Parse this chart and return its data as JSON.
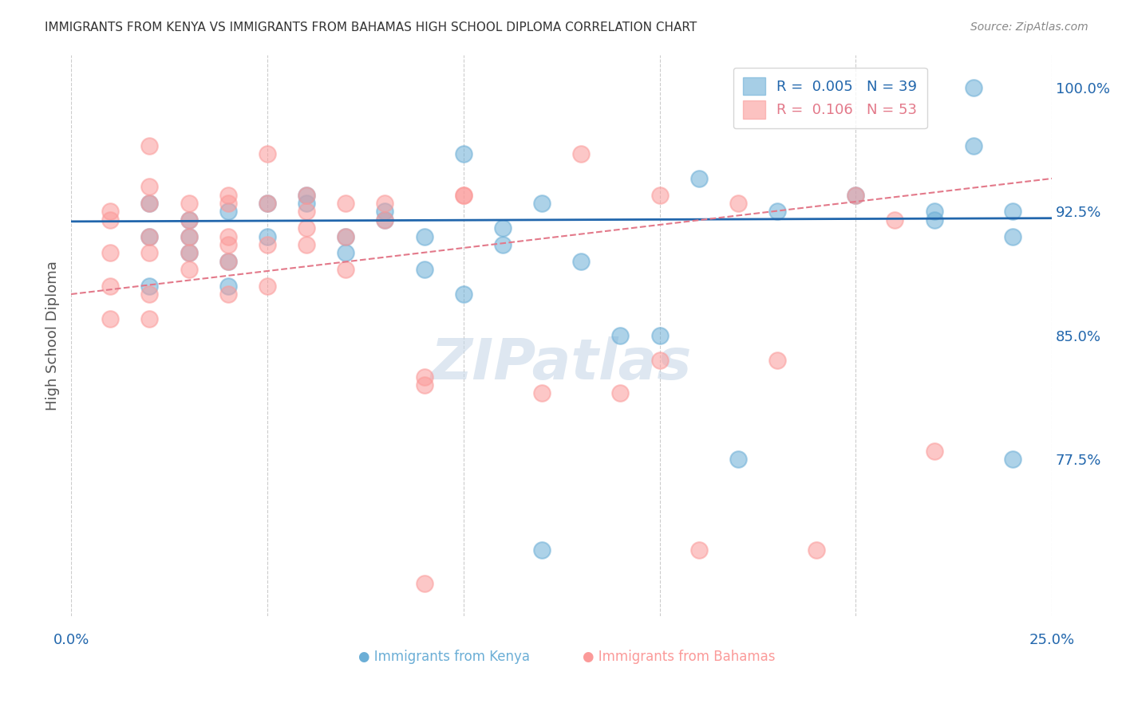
{
  "title": "IMMIGRANTS FROM KENYA VS IMMIGRANTS FROM BAHAMAS HIGH SCHOOL DIPLOMA CORRELATION CHART",
  "source": "Source: ZipAtlas.com",
  "ylabel": "High School Diploma",
  "ytick_labels": [
    "100.0%",
    "92.5%",
    "85.0%",
    "77.5%"
  ],
  "ytick_values": [
    1.0,
    0.925,
    0.85,
    0.775
  ],
  "xlim": [
    0.0,
    0.25
  ],
  "ylim": [
    0.68,
    1.02
  ],
  "kenya_color": "#6baed6",
  "bahamas_color": "#fb9a99",
  "kenya_line_color": "#2166ac",
  "bahamas_line_color": "#e3798a",
  "kenya_scatter_x": [
    0.02,
    0.02,
    0.02,
    0.03,
    0.03,
    0.03,
    0.04,
    0.04,
    0.04,
    0.05,
    0.05,
    0.06,
    0.06,
    0.07,
    0.07,
    0.08,
    0.08,
    0.09,
    0.09,
    0.1,
    0.1,
    0.11,
    0.11,
    0.12,
    0.13,
    0.14,
    0.15,
    0.16,
    0.17,
    0.2,
    0.22,
    0.22,
    0.23,
    0.23,
    0.24,
    0.24,
    0.24,
    0.12,
    0.18
  ],
  "kenya_scatter_y": [
    0.91,
    0.93,
    0.88,
    0.92,
    0.91,
    0.9,
    0.925,
    0.895,
    0.88,
    0.93,
    0.91,
    0.935,
    0.93,
    0.91,
    0.9,
    0.925,
    0.92,
    0.89,
    0.91,
    0.96,
    0.875,
    0.915,
    0.905,
    0.93,
    0.895,
    0.85,
    0.85,
    0.945,
    0.775,
    0.935,
    0.92,
    0.925,
    1.0,
    0.965,
    0.775,
    0.925,
    0.91,
    0.72,
    0.925
  ],
  "bahamas_scatter_x": [
    0.01,
    0.01,
    0.01,
    0.01,
    0.01,
    0.02,
    0.02,
    0.02,
    0.02,
    0.02,
    0.02,
    0.02,
    0.03,
    0.03,
    0.03,
    0.03,
    0.03,
    0.04,
    0.04,
    0.04,
    0.04,
    0.04,
    0.04,
    0.05,
    0.05,
    0.05,
    0.05,
    0.06,
    0.06,
    0.06,
    0.06,
    0.07,
    0.07,
    0.07,
    0.08,
    0.08,
    0.09,
    0.09,
    0.1,
    0.1,
    0.12,
    0.13,
    0.14,
    0.15,
    0.15,
    0.16,
    0.17,
    0.18,
    0.19,
    0.2,
    0.21,
    0.22,
    0.09
  ],
  "bahamas_scatter_y": [
    0.925,
    0.92,
    0.9,
    0.88,
    0.86,
    0.965,
    0.94,
    0.93,
    0.91,
    0.9,
    0.875,
    0.86,
    0.93,
    0.92,
    0.91,
    0.9,
    0.89,
    0.935,
    0.93,
    0.91,
    0.905,
    0.895,
    0.875,
    0.96,
    0.93,
    0.905,
    0.88,
    0.935,
    0.925,
    0.915,
    0.905,
    0.93,
    0.91,
    0.89,
    0.93,
    0.92,
    0.825,
    0.82,
    0.935,
    0.935,
    0.815,
    0.96,
    0.815,
    0.935,
    0.835,
    0.72,
    0.93,
    0.835,
    0.72,
    0.935,
    0.92,
    0.78,
    0.7
  ],
  "kenya_trend_x": [
    0.0,
    0.25
  ],
  "kenya_trend_y": [
    0.919,
    0.921
  ],
  "bahamas_trend_x": [
    0.0,
    0.25
  ],
  "bahamas_trend_y": [
    0.875,
    0.945
  ],
  "watermark": "ZIPatlas",
  "title_fontsize": 11,
  "tick_label_color": "#2166ac"
}
